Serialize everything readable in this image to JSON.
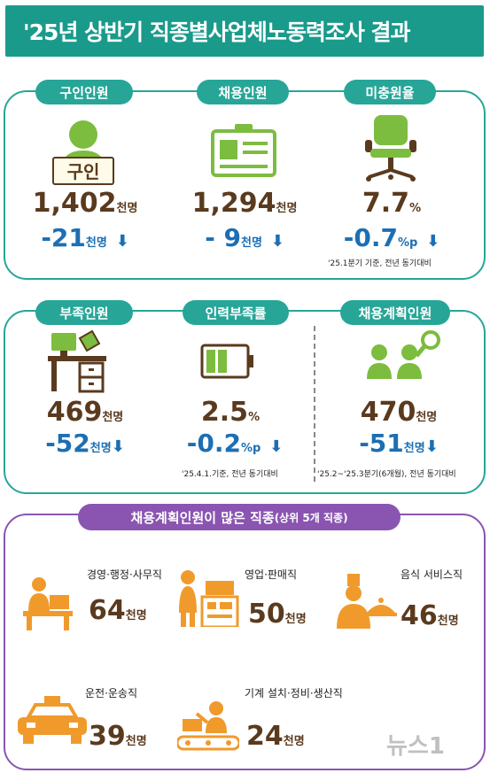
{
  "title": "'25년 상반기 직종별사업체노동력조사 결과",
  "colors": {
    "teal": "#27a698",
    "purple": "#8a55b1",
    "brown": "#5a3a1e",
    "blue": "#1c6fb3",
    "icon_green": "#7cbc3f",
    "icon_orange": "#f09a2c"
  },
  "section1": {
    "note": "'25.1분기 기준, 전년 동기대비",
    "items": [
      {
        "label": "구인인원",
        "value": "1,402",
        "unit": "천명",
        "change": "-21",
        "change_unit": "천명",
        "arrow": "⬇",
        "sign_text": "구인"
      },
      {
        "label": "채용인원",
        "value": "1,294",
        "unit": "천명",
        "change": "- 9",
        "change_unit": "천명",
        "arrow": "⬇"
      },
      {
        "label": "미충원율",
        "value": "7.7",
        "unit": "%",
        "change": "-0.7",
        "change_unit": "%p",
        "arrow": "⬇"
      }
    ]
  },
  "section2": {
    "note_left": "'25.4.1.기준, 전년 동기대비",
    "note_right": "'25.2~'25.3분기(6개월), 전년 동기대비",
    "items": [
      {
        "label": "부족인원",
        "value": "469",
        "unit": "천명",
        "change": "-52",
        "change_unit": "천명",
        "arrow": "⬇"
      },
      {
        "label": "인력부족률",
        "value": "2.5",
        "unit": "%",
        "change": "-0.2",
        "change_unit": "%p",
        "arrow": "⬇"
      },
      {
        "label": "채용계획인원",
        "value": "470",
        "unit": "천명",
        "change": "-51",
        "change_unit": "천명",
        "arrow": "⬇"
      }
    ]
  },
  "section3": {
    "title": "채용계획인원이 많은 직종",
    "subtitle": "(상위 5개 직종)",
    "items": [
      {
        "label": "경영·행정·사무직",
        "value": "64",
        "unit": "천명"
      },
      {
        "label": "영업·판매직",
        "value": "50",
        "unit": "천명"
      },
      {
        "label": "음식 서비스직",
        "value": "46",
        "unit": "천명"
      },
      {
        "label": "운전·운송직",
        "value": "39",
        "unit": "천명"
      },
      {
        "label": "기계 설치·정비·생산직",
        "value": "24",
        "unit": "천명"
      }
    ]
  },
  "watermark": "뉴스1"
}
